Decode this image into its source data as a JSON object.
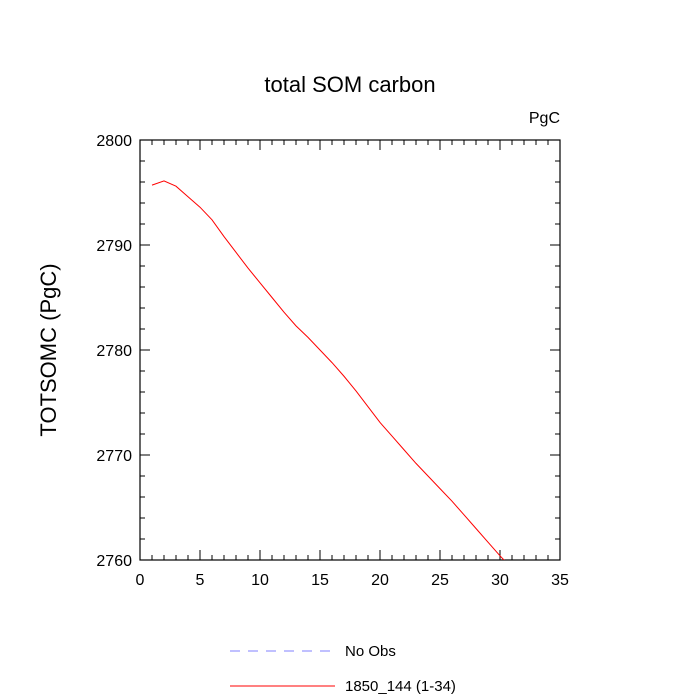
{
  "chart_data": {
    "type": "line",
    "title": "total SOM carbon",
    "units_label": "PgC",
    "xlabel": "",
    "ylabel": "TOTSOMC  (PgC)",
    "xlim": [
      0,
      35
    ],
    "ylim": [
      2760,
      2800
    ],
    "x_ticks": [
      0,
      5,
      10,
      15,
      20,
      25,
      30,
      35
    ],
    "y_ticks": [
      2760,
      2770,
      2780,
      2790,
      2800
    ],
    "grid": false,
    "legend_position": "bottom-center",
    "series": [
      {
        "name": "No Obs",
        "color": "#8080ff",
        "dash": "dashed",
        "x": [],
        "y": []
      },
      {
        "name": "1850_144 (1-34)",
        "color": "#ff0000",
        "dash": "solid",
        "x": [
          1,
          2,
          3,
          4,
          5,
          6,
          7,
          8,
          9,
          10,
          11,
          12,
          13,
          14,
          15,
          16,
          17,
          18,
          19,
          20,
          21,
          22,
          23,
          24,
          25,
          26,
          27,
          28,
          29,
          30,
          31,
          32,
          33,
          34
        ],
        "y": [
          2795.7,
          2796.1,
          2795.6,
          2794.6,
          2793.6,
          2792.4,
          2790.8,
          2789.3,
          2787.8,
          2786.4,
          2785.0,
          2783.6,
          2782.3,
          2781.2,
          2780.0,
          2778.8,
          2777.5,
          2776.1,
          2774.6,
          2773.1,
          2771.8,
          2770.5,
          2769.2,
          2768.0,
          2766.8,
          2765.6,
          2764.3,
          2763.0,
          2761.7,
          2760.4,
          2759.2,
          2758.1,
          2757.0,
          2755.9
        ]
      }
    ]
  }
}
